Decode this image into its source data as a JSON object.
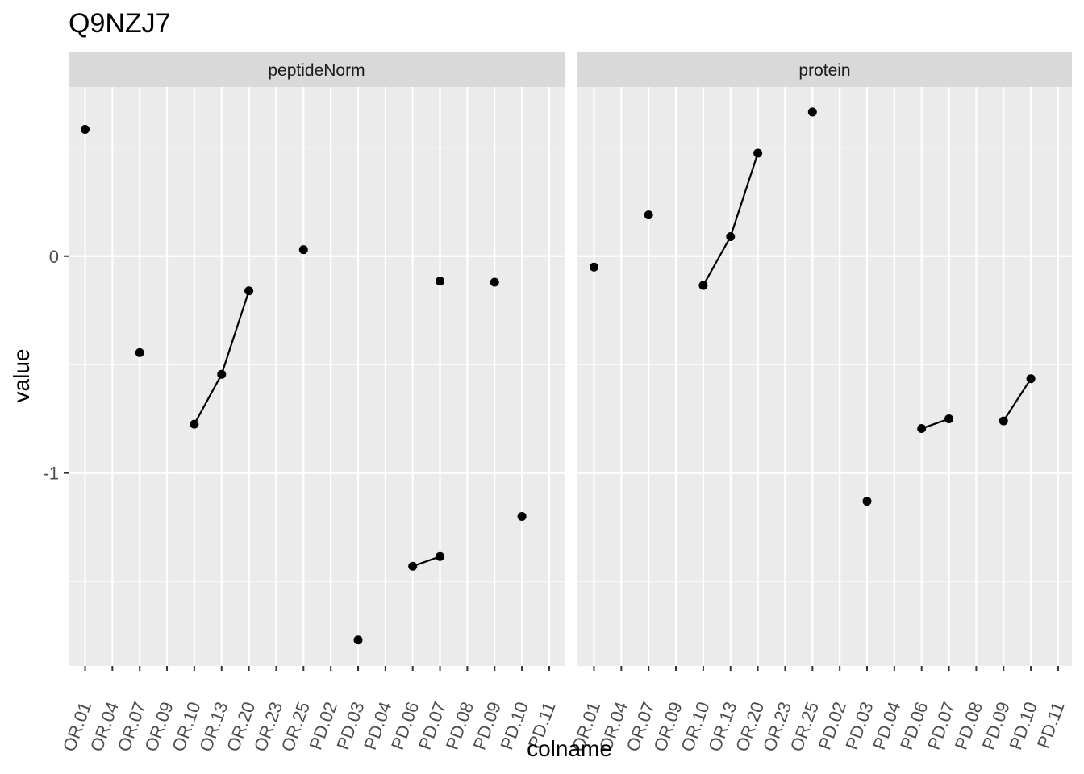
{
  "chart_data": {
    "type": "line",
    "title": "Q9NZJ7",
    "xlabel": "colname",
    "ylabel": "value",
    "categories": [
      "OR.01",
      "OR.04",
      "OR.07",
      "OR.09",
      "OR.10",
      "OR.13",
      "OR.20",
      "OR.23",
      "OR.25",
      "PD.02",
      "PD.03",
      "PD.04",
      "PD.06",
      "PD.07",
      "PD.08",
      "PD.09",
      "PD.10",
      "PD.11"
    ],
    "ylim": [
      -1.89,
      0.78
    ],
    "y_major_ticks": [
      0,
      -1
    ],
    "y_tick_labels": [
      "0",
      "-1"
    ],
    "grid": true,
    "facets": [
      {
        "label": "peptideNorm",
        "segments": [
          [
            [
              "OR.01",
              0.585
            ]
          ],
          [
            [
              "OR.07",
              -0.445
            ]
          ],
          [
            [
              "OR.10",
              -0.775
            ],
            [
              "OR.13",
              -0.545
            ],
            [
              "OR.20",
              -0.16
            ]
          ],
          [
            [
              "OR.25",
              0.03
            ]
          ],
          [
            [
              "PD.03",
              -1.77
            ]
          ],
          [
            [
              "PD.06",
              -1.43
            ],
            [
              "PD.07",
              -1.385
            ]
          ],
          [
            [
              "PD.07",
              -0.115
            ]
          ],
          [
            [
              "PD.09",
              -0.12
            ]
          ],
          [
            [
              "PD.10",
              -1.2
            ]
          ]
        ]
      },
      {
        "label": "protein",
        "segments": [
          [
            [
              "OR.01",
              -0.05
            ]
          ],
          [
            [
              "OR.07",
              0.19
            ]
          ],
          [
            [
              "OR.10",
              -0.135
            ],
            [
              "OR.13",
              0.09
            ],
            [
              "OR.20",
              0.475
            ]
          ],
          [
            [
              "OR.25",
              0.665
            ]
          ],
          [
            [
              "PD.03",
              -1.13
            ]
          ],
          [
            [
              "PD.06",
              -0.795
            ],
            [
              "PD.07",
              -0.75
            ]
          ],
          [
            [
              "PD.09",
              -0.76
            ],
            [
              "PD.10",
              -0.565
            ]
          ]
        ]
      }
    ]
  },
  "colors": {
    "panel_background": "#EBEBEB",
    "strip_background": "#D9D9D9",
    "grid": "#FFFFFF",
    "ink": "#000000",
    "axis_text": "#4D4D4D",
    "strip_text": "#1A1A1A",
    "tick": "#333333"
  }
}
